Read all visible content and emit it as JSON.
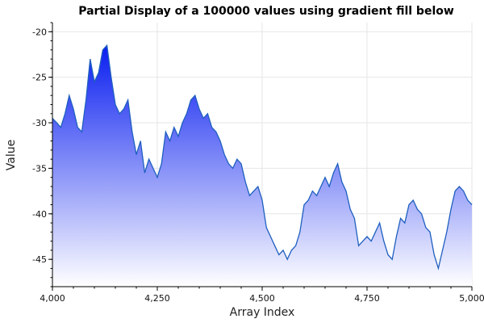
{
  "chart_data": {
    "type": "area",
    "title": "Partial Display of a 100000 values using gradient fill below",
    "xlabel": "Array Index",
    "ylabel": "Value",
    "xlim": [
      4000,
      5000
    ],
    "ylim": [
      -48,
      -19
    ],
    "x_ticks": [
      {
        "value": 4000,
        "label": "4,000"
      },
      {
        "value": 4250,
        "label": "4,250"
      },
      {
        "value": 4500,
        "label": "4,500"
      },
      {
        "value": 4750,
        "label": "4,750"
      },
      {
        "value": 5000,
        "label": "5,000"
      }
    ],
    "y_ticks": [
      {
        "value": -20,
        "label": "-20"
      },
      {
        "value": -25,
        "label": "-25"
      },
      {
        "value": -30,
        "label": "-30"
      },
      {
        "value": -35,
        "label": "-35"
      },
      {
        "value": -40,
        "label": "-40"
      },
      {
        "value": -45,
        "label": "-45"
      }
    ],
    "grid": true,
    "line_color": "#1f5fbf",
    "fill_top_color": "#0a1ef0",
    "fill_bottom_color": "#ffffff",
    "series": [
      {
        "x": [
          4000,
          4010,
          4020,
          4030,
          4040,
          4050,
          4060,
          4070,
          4080,
          4090,
          4100,
          4110,
          4120,
          4130,
          4140,
          4150,
          4160,
          4170,
          4180,
          4190,
          4200,
          4210,
          4220,
          4230,
          4240,
          4250,
          4260,
          4270,
          4280,
          4290,
          4300,
          4310,
          4320,
          4330,
          4340,
          4350,
          4360,
          4370,
          4380,
          4390,
          4400,
          4410,
          4420,
          4430,
          4440,
          4450,
          4460,
          4470,
          4480,
          4490,
          4500,
          4510,
          4520,
          4530,
          4540,
          4550,
          4560,
          4570,
          4580,
          4590,
          4600,
          4610,
          4620,
          4630,
          4640,
          4650,
          4660,
          4670,
          4680,
          4690,
          4700,
          4710,
          4720,
          4730,
          4740,
          4750,
          4760,
          4770,
          4780,
          4790,
          4800,
          4810,
          4820,
          4830,
          4840,
          4850,
          4860,
          4870,
          4880,
          4890,
          4900,
          4910,
          4920,
          4930,
          4940,
          4950,
          4960,
          4970,
          4980,
          4990,
          5000
        ],
        "y": [
          -29.5,
          -30.0,
          -30.5,
          -29.0,
          -27.0,
          -28.5,
          -30.5,
          -31.0,
          -27.5,
          -23.0,
          -25.5,
          -24.5,
          -22.0,
          -21.5,
          -25.0,
          -28.0,
          -29.0,
          -28.5,
          -27.5,
          -31.0,
          -33.5,
          -32.0,
          -35.5,
          -34.0,
          -35.0,
          -36.0,
          -34.5,
          -31.0,
          -32.0,
          -30.5,
          -31.5,
          -30.0,
          -29.0,
          -27.5,
          -27.0,
          -28.5,
          -29.5,
          -29.0,
          -30.5,
          -31.0,
          -32.0,
          -33.5,
          -34.5,
          -35.0,
          -34.0,
          -34.5,
          -36.5,
          -38.0,
          -37.5,
          -37.0,
          -38.5,
          -41.5,
          -42.5,
          -43.5,
          -44.5,
          -44.0,
          -45.0,
          -44.0,
          -43.5,
          -42.0,
          -39.0,
          -38.5,
          -37.5,
          -38.0,
          -37.0,
          -36.0,
          -37.0,
          -35.5,
          -34.5,
          -36.5,
          -37.5,
          -39.5,
          -40.5,
          -43.5,
          -43.0,
          -42.5,
          -43.0,
          -42.0,
          -41.0,
          -43.0,
          -44.5,
          -45.0,
          -42.5,
          -40.5,
          -41.0,
          -39.0,
          -38.5,
          -39.5,
          -40.0,
          -41.5,
          -42.0,
          -44.5,
          -46.0,
          -44.0,
          -42.0,
          -39.5,
          -37.5,
          -37.0,
          -37.5,
          -38.5,
          -39.0
        ]
      }
    ]
  }
}
